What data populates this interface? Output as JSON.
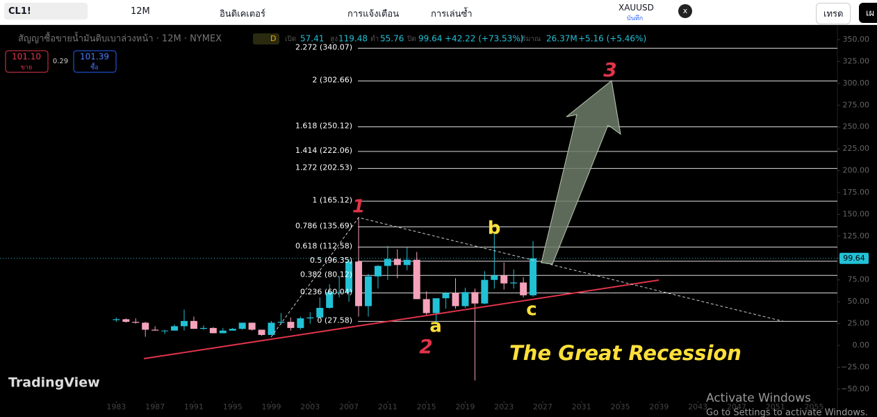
{
  "toolbar": {
    "symbol": "CL1!",
    "interval": "12M",
    "indicators": "อินดิเคเตอร์",
    "alerts": "การแจ้งเตือน",
    "replay": "การเล่นซ้ำ",
    "layout_name": "XAUUSD",
    "layout_sub": "บันทึก",
    "close_x": "x",
    "trade": "เทรด",
    "publish": "เผ"
  },
  "legend": {
    "title": "สัญญาซื้อขายน้ำมันดิบเบาล่วงหน้า · 12M · NYMEX",
    "badge": "D",
    "o_label": "เปิด",
    "h_label": "สูง",
    "l_label": "ต่ำ",
    "c_label": "ปิด",
    "change": "+42.22 (+73.53%)",
    "vol_label": "ปริมาณ",
    "volume": "26.37M",
    "vol_change": "+5.16 (+5.46%)"
  },
  "order": {
    "sell_price": "101.10",
    "sell": "ขาย",
    "spread": "0.29",
    "buy_price": "101.39",
    "buy": "ซื้อ"
  },
  "chart_data": {
    "type": "candlestick",
    "x": [
      1983,
      1984,
      1985,
      1986,
      1987,
      1988,
      1989,
      1990,
      1991,
      1992,
      1993,
      1994,
      1995,
      1996,
      1997,
      1998,
      1999,
      2000,
      2001,
      2002,
      2003,
      2004,
      2005,
      2006,
      2007,
      2008,
      2009,
      2010,
      2011,
      2012,
      2013,
      2014,
      2015,
      2016,
      2017,
      2018,
      2019,
      2020,
      2021,
      2022,
      2023,
      2024,
      2025,
      2026
    ],
    "open": [
      29,
      30,
      27,
      26,
      18,
      17,
      17,
      22,
      28,
      19,
      20,
      14,
      17,
      19,
      26,
      18,
      12,
      26,
      27,
      20,
      31,
      32,
      43,
      61,
      61,
      96,
      45,
      79,
      91,
      99,
      92,
      98,
      53,
      37,
      54,
      60,
      45,
      61,
      48,
      75,
      80,
      71,
      72,
      57.41
    ],
    "high": [
      32,
      31,
      31,
      27,
      22,
      18,
      24,
      41,
      33,
      23,
      21,
      20,
      20,
      26,
      26,
      18,
      28,
      37,
      32,
      33,
      38,
      55,
      70,
      79,
      99,
      147,
      82,
      92,
      114,
      110,
      112,
      107,
      62,
      54,
      61,
      77,
      66,
      65,
      85,
      130,
      95,
      87,
      78,
      119.48
    ],
    "low": [
      27,
      26,
      25,
      10,
      17,
      13,
      17,
      17,
      19,
      18,
      14,
      14,
      17,
      18,
      17,
      11,
      12,
      24,
      17,
      18,
      25,
      32,
      42,
      55,
      50,
      33,
      33,
      65,
      75,
      77,
      86,
      53,
      34,
      26,
      42,
      42,
      43,
      -40,
      47,
      65,
      64,
      65,
      55,
      55.76
    ],
    "close": [
      30,
      27,
      26,
      18,
      17,
      17,
      22,
      28,
      19,
      20,
      14,
      17,
      19,
      26,
      18,
      12,
      26,
      27,
      20,
      31,
      32,
      43,
      61,
      61,
      96,
      45,
      79,
      91,
      99,
      92,
      98,
      53,
      37,
      54,
      60,
      45,
      61,
      48,
      75,
      80,
      71,
      72,
      57.41,
      99.64
    ],
    "up_color": "#22c1d6",
    "down_color": "#f4a3bb",
    "xlim": [
      1971,
      2057.4
    ],
    "ylim": [
      -62,
      359.5
    ],
    "xticks": [
      1983,
      1987,
      1991,
      1995,
      1999,
      2003,
      2007,
      2011,
      2015,
      2019,
      2023,
      2027,
      2031,
      2035,
      2039,
      2043,
      2047,
      2051,
      2055
    ],
    "yticks": [
      {
        "value": 350,
        "label": "350.00"
      },
      {
        "value": 325,
        "label": "325.00"
      },
      {
        "value": 300,
        "label": "300.00"
      },
      {
        "value": 275,
        "label": "275.00"
      },
      {
        "value": 250,
        "label": "250.00"
      },
      {
        "value": 225,
        "label": "225.00"
      },
      {
        "value": 200,
        "label": "200.00"
      },
      {
        "value": 175,
        "label": "175.00"
      },
      {
        "value": 150,
        "label": "150.00"
      },
      {
        "value": 125,
        "label": "125.00"
      },
      {
        "value": 100,
        "label": "100.00"
      },
      {
        "value": 75,
        "label": "75.00"
      },
      {
        "value": 50,
        "label": "50.00"
      },
      {
        "value": 25,
        "label": "25.00"
      },
      {
        "value": 0,
        "label": "0.00"
      },
      {
        "value": -25,
        "label": "−25.00"
      },
      {
        "value": -50,
        "label": "−50.00"
      }
    ],
    "fib_levels": [
      {
        "value": 340.07,
        "label": "2.272 (340.07)"
      },
      {
        "value": 302.66,
        "label": "2 (302.66)"
      },
      {
        "value": 250.12,
        "label": "1.618 (250.12)"
      },
      {
        "value": 222.06,
        "label": "1.414 (222.06)"
      },
      {
        "value": 202.53,
        "label": "1.272 (202.53)"
      },
      {
        "value": 165.12,
        "label": "1 (165.12)"
      },
      {
        "value": 135.69,
        "label": "0.786 (135.69)"
      },
      {
        "value": 112.58,
        "label": "0.618 (112.58)"
      },
      {
        "value": 96.35,
        "label": "0.5 (96.35)"
      },
      {
        "value": 80.12,
        "label": "0.382 (80.12)"
      },
      {
        "value": 60.04,
        "label": "0.236 (60.04)"
      },
      {
        "value": 27.58,
        "label": "0 (27.58)"
      }
    ],
    "annotations": {
      "w1": "1",
      "w2": "2",
      "w3": "3",
      "a": "a",
      "b": "b",
      "c": "c",
      "note": "The Great Recession"
    }
  },
  "branding": {
    "logo": "TradingView",
    "win1": "Activate Windows",
    "win2": "Go to Settings to activate Windows."
  }
}
